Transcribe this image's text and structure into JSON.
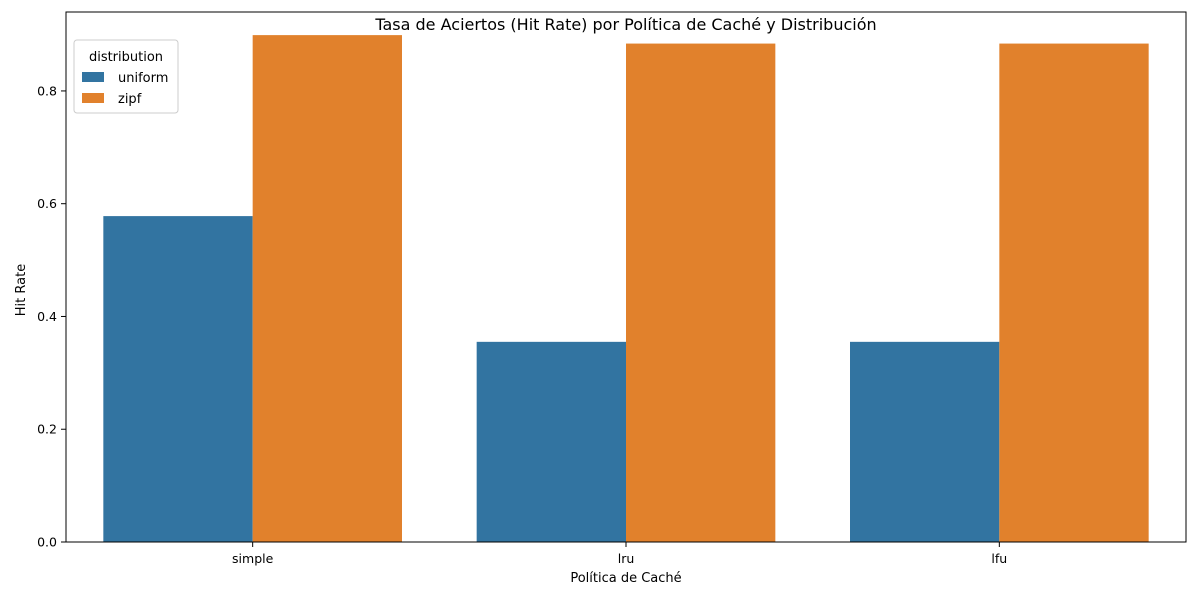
{
  "chart_data": {
    "type": "bar",
    "title": "Tasa de Aciertos (Hit Rate) por Política de Caché y Distribución",
    "xlabel": "Política de Caché",
    "ylabel": "Hit Rate",
    "categories": [
      "simple",
      "lru",
      "lfu"
    ],
    "series": [
      {
        "name": "uniform",
        "values": [
          0.578,
          0.355,
          0.355
        ],
        "color": "#3274a1"
      },
      {
        "name": "zipf",
        "values": [
          0.899,
          0.884,
          0.884
        ],
        "color": "#e1812c"
      }
    ],
    "ylim": [
      0,
      0.94
    ],
    "yticks": [
      0.0,
      0.2,
      0.4,
      0.6,
      0.8
    ],
    "ytick_labels": [
      "0.0",
      "0.2",
      "0.4",
      "0.6",
      "0.8"
    ],
    "grid": false,
    "legend": {
      "title": "distribution",
      "placement": "top-left"
    }
  }
}
